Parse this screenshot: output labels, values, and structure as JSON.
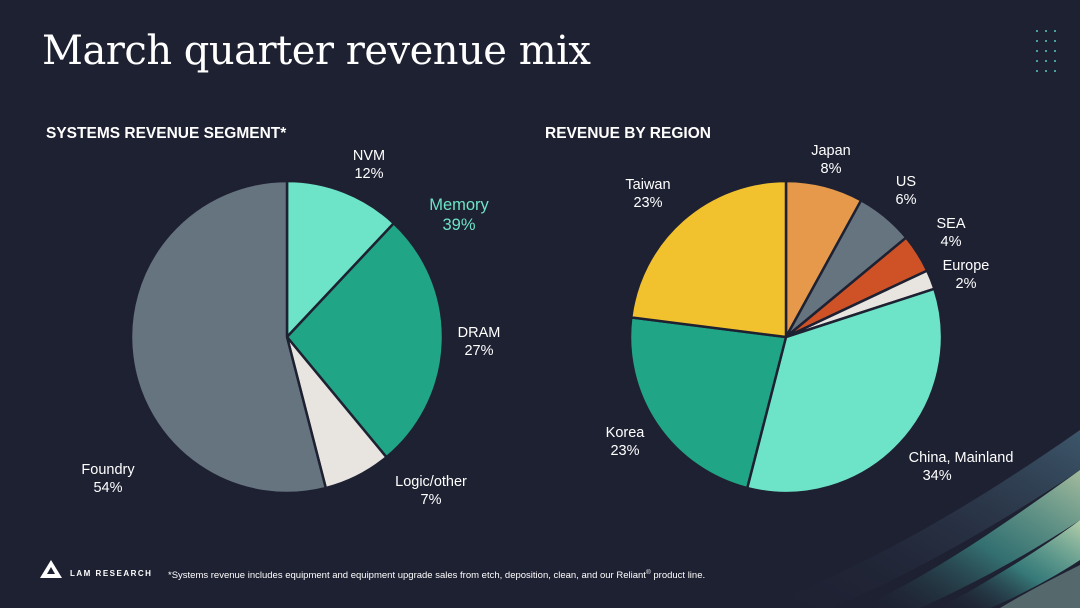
{
  "title": "March quarter revenue mix",
  "brand": {
    "name": "LAM RESEARCH"
  },
  "footnote": {
    "before": "*Systems revenue includes equipment and equipment upgrade sales from etch, deposition, clean, and our Reliant",
    "mark": "®",
    "after": " product line."
  },
  "colors": {
    "background": "#1e2132",
    "teal_light": "#6de3c7",
    "teal_dark": "#20a686",
    "gray": "#667480",
    "offwhite": "#e8e4df",
    "yellow": "#f2c12e",
    "orange": "#e6994a",
    "rust": "#cf5227"
  },
  "chart_data": [
    {
      "type": "pie",
      "title": "SYSTEMS REVENUE SEGMENT*",
      "start": "12 o'clock, clockwise",
      "slices": [
        {
          "label": "NVM",
          "value": 12,
          "pct": "12%",
          "color": "#6de3c7"
        },
        {
          "label": "DRAM",
          "value": 27,
          "pct": "27%",
          "color": "#20a686"
        },
        {
          "label": "Logic/other",
          "value": 7,
          "pct": "7%",
          "color": "#e8e4df"
        },
        {
          "label": "Foundry",
          "value": 54,
          "pct": "54%",
          "color": "#667480"
        }
      ],
      "group_annotation": {
        "label": "Memory",
        "pct": "39%",
        "members": [
          "NVM",
          "DRAM"
        ]
      }
    },
    {
      "type": "pie",
      "title": "REVENUE BY REGION",
      "start": "12 o'clock, clockwise",
      "slices": [
        {
          "label": "Japan",
          "value": 8,
          "pct": "8%",
          "color": "#e6994a"
        },
        {
          "label": "US",
          "value": 6,
          "pct": "6%",
          "color": "#667480"
        },
        {
          "label": "SEA",
          "value": 4,
          "pct": "4%",
          "color": "#cf5227"
        },
        {
          "label": "Europe",
          "value": 2,
          "pct": "2%",
          "color": "#e8e4df"
        },
        {
          "label": "China, Mainland",
          "value": 34,
          "pct": "34%",
          "color": "#6de3c7"
        },
        {
          "label": "Korea",
          "value": 23,
          "pct": "23%",
          "color": "#20a686"
        },
        {
          "label": "Taiwan",
          "value": 23,
          "pct": "23%",
          "color": "#f2c12e"
        }
      ]
    }
  ]
}
